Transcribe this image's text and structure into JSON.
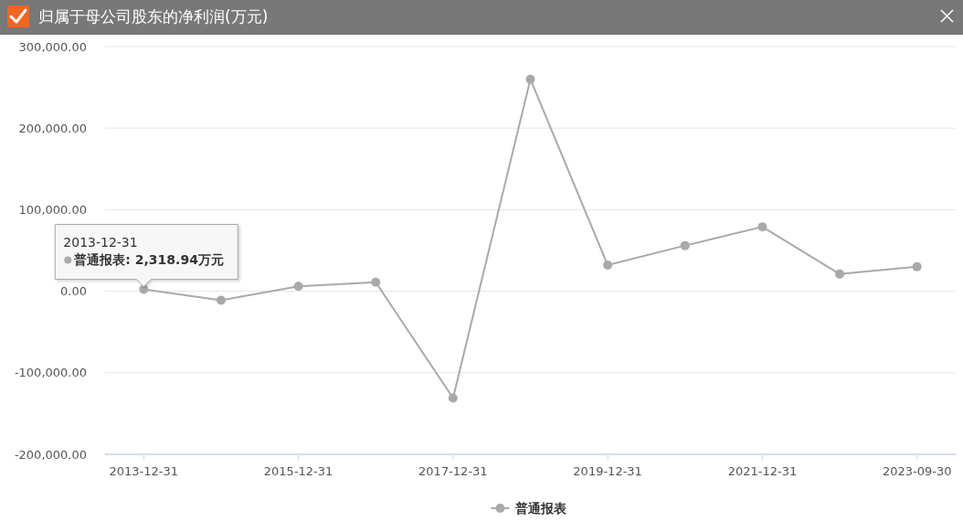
{
  "chart_data": {
    "type": "line",
    "title": "归属于母公司股东的净利润(万元)",
    "categories": [
      "2013-12-31",
      null,
      "2015-12-31",
      null,
      "2017-12-31",
      null,
      "2019-12-31",
      null,
      "2021-12-31",
      null,
      "2023-09-30"
    ],
    "series": [
      {
        "name": "普通报表",
        "color": "#a9a9a9",
        "values": [
          2318.94,
          -11000,
          6000,
          11000,
          -131000,
          260000,
          32000,
          56000,
          79000,
          21000,
          30000
        ]
      }
    ],
    "ylim": [
      -200000,
      300000
    ],
    "yticks": [
      {
        "value": -200000,
        "label": "-200,000.00"
      },
      {
        "value": -100000,
        "label": "-100,000.00"
      },
      {
        "value": 0,
        "label": "0.00"
      },
      {
        "value": 100000,
        "label": "100,000.00"
      },
      {
        "value": 200000,
        "label": "200,000.00"
      },
      {
        "value": 300000,
        "label": "300,000.00"
      }
    ],
    "grid": "y",
    "legend": "bottom",
    "marker": "circle",
    "line_style": "solid",
    "annotations": [
      {
        "text": "2013-12-31\n普通报表: 2,318.94万元",
        "x": "2013-12-31",
        "y": 2318.94
      }
    ]
  }
}
